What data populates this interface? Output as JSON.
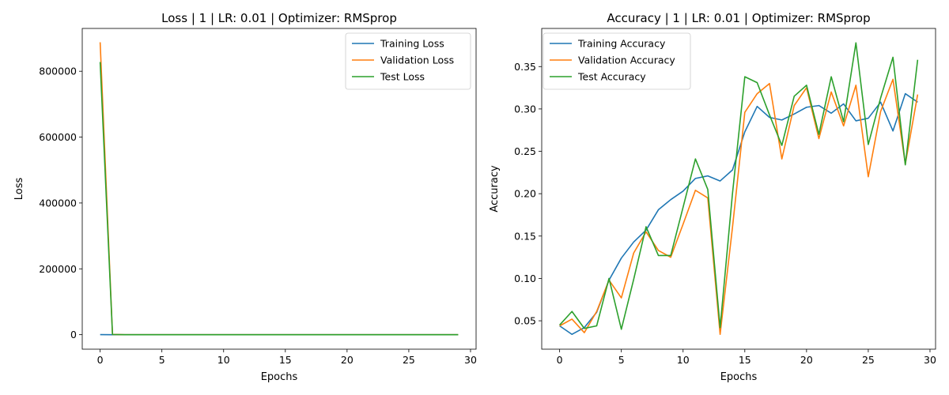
{
  "chart_data": [
    {
      "type": "line",
      "title": "Loss | 1 | LR: 0.01 | Optimizer: RMSprop",
      "xlabel": "Epochs",
      "ylabel": "Loss",
      "xlim": [
        -1.45,
        30.45
      ],
      "ylim": [
        -44000,
        930000
      ],
      "xticks": [
        0,
        5,
        10,
        15,
        20,
        25,
        30
      ],
      "yticks": [
        0,
        200000,
        400000,
        600000,
        800000
      ],
      "legend_position": "upper right",
      "x": [
        0,
        1,
        2,
        3,
        4,
        5,
        6,
        7,
        8,
        9,
        10,
        11,
        12,
        13,
        14,
        15,
        16,
        17,
        18,
        19,
        20,
        21,
        22,
        23,
        24,
        25,
        26,
        27,
        28,
        29
      ],
      "series": [
        {
          "name": "Training Loss",
          "color": "#1f77b4",
          "values": [
            300,
            5,
            4,
            4,
            3,
            3,
            3,
            3,
            3,
            3,
            3,
            3,
            3,
            3,
            3,
            3,
            3,
            3,
            3,
            3,
            3,
            3,
            3,
            3,
            3,
            3,
            3,
            3,
            3,
            3
          ]
        },
        {
          "name": "Validation Loss",
          "color": "#ff7f0e",
          "values": [
            888000,
            800,
            20,
            10,
            8,
            6,
            5,
            5,
            5,
            4,
            4,
            4,
            4,
            4,
            4,
            4,
            4,
            4,
            4,
            4,
            4,
            4,
            4,
            4,
            4,
            4,
            4,
            4,
            4,
            4
          ]
        },
        {
          "name": "Test Loss",
          "color": "#2ca02c",
          "values": [
            828000,
            700,
            20,
            10,
            8,
            6,
            5,
            5,
            5,
            4,
            4,
            4,
            4,
            4,
            4,
            4,
            4,
            4,
            4,
            4,
            4,
            4,
            4,
            4,
            4,
            4,
            4,
            4,
            4,
            4
          ]
        }
      ]
    },
    {
      "type": "line",
      "title": "Accuracy | 1 | LR: 0.01 | Optimizer: RMSprop",
      "xlabel": "Epochs",
      "ylabel": "Accuracy",
      "xlim": [
        -1.45,
        30.45
      ],
      "ylim": [
        0.0165,
        0.395
      ],
      "xticks": [
        0,
        5,
        10,
        15,
        20,
        25,
        30
      ],
      "yticks": [
        0.05,
        0.1,
        0.15,
        0.2,
        0.25,
        0.3,
        0.35
      ],
      "legend_position": "upper left",
      "x": [
        0,
        1,
        2,
        3,
        4,
        5,
        6,
        7,
        8,
        9,
        10,
        11,
        12,
        13,
        14,
        15,
        16,
        17,
        18,
        19,
        20,
        21,
        22,
        23,
        24,
        25,
        26,
        27,
        28,
        29
      ],
      "series": [
        {
          "name": "Training Accuracy",
          "color": "#1f77b4",
          "values": [
            0.044,
            0.034,
            0.042,
            0.06,
            0.098,
            0.124,
            0.143,
            0.157,
            0.181,
            0.193,
            0.203,
            0.218,
            0.221,
            0.215,
            0.228,
            0.273,
            0.303,
            0.29,
            0.287,
            0.294,
            0.302,
            0.304,
            0.295,
            0.306,
            0.286,
            0.289,
            0.308,
            0.274,
            0.318,
            0.308
          ]
        },
        {
          "name": "Validation Accuracy",
          "color": "#ff7f0e",
          "values": [
            0.044,
            0.052,
            0.036,
            0.061,
            0.098,
            0.077,
            0.13,
            0.155,
            0.133,
            0.125,
            0.164,
            0.204,
            0.195,
            0.034,
            0.16,
            0.296,
            0.318,
            0.33,
            0.241,
            0.304,
            0.325,
            0.265,
            0.32,
            0.28,
            0.328,
            0.22,
            0.297,
            0.335,
            0.235,
            0.317
          ]
        },
        {
          "name": "Test Accuracy",
          "color": "#2ca02c",
          "values": [
            0.045,
            0.061,
            0.041,
            0.044,
            0.1,
            0.04,
            0.099,
            0.161,
            0.127,
            0.127,
            0.184,
            0.241,
            0.205,
            0.042,
            0.2,
            0.338,
            0.331,
            0.293,
            0.257,
            0.315,
            0.328,
            0.27,
            0.338,
            0.285,
            0.378,
            0.258,
            0.313,
            0.361,
            0.234,
            0.358
          ]
        }
      ]
    }
  ]
}
